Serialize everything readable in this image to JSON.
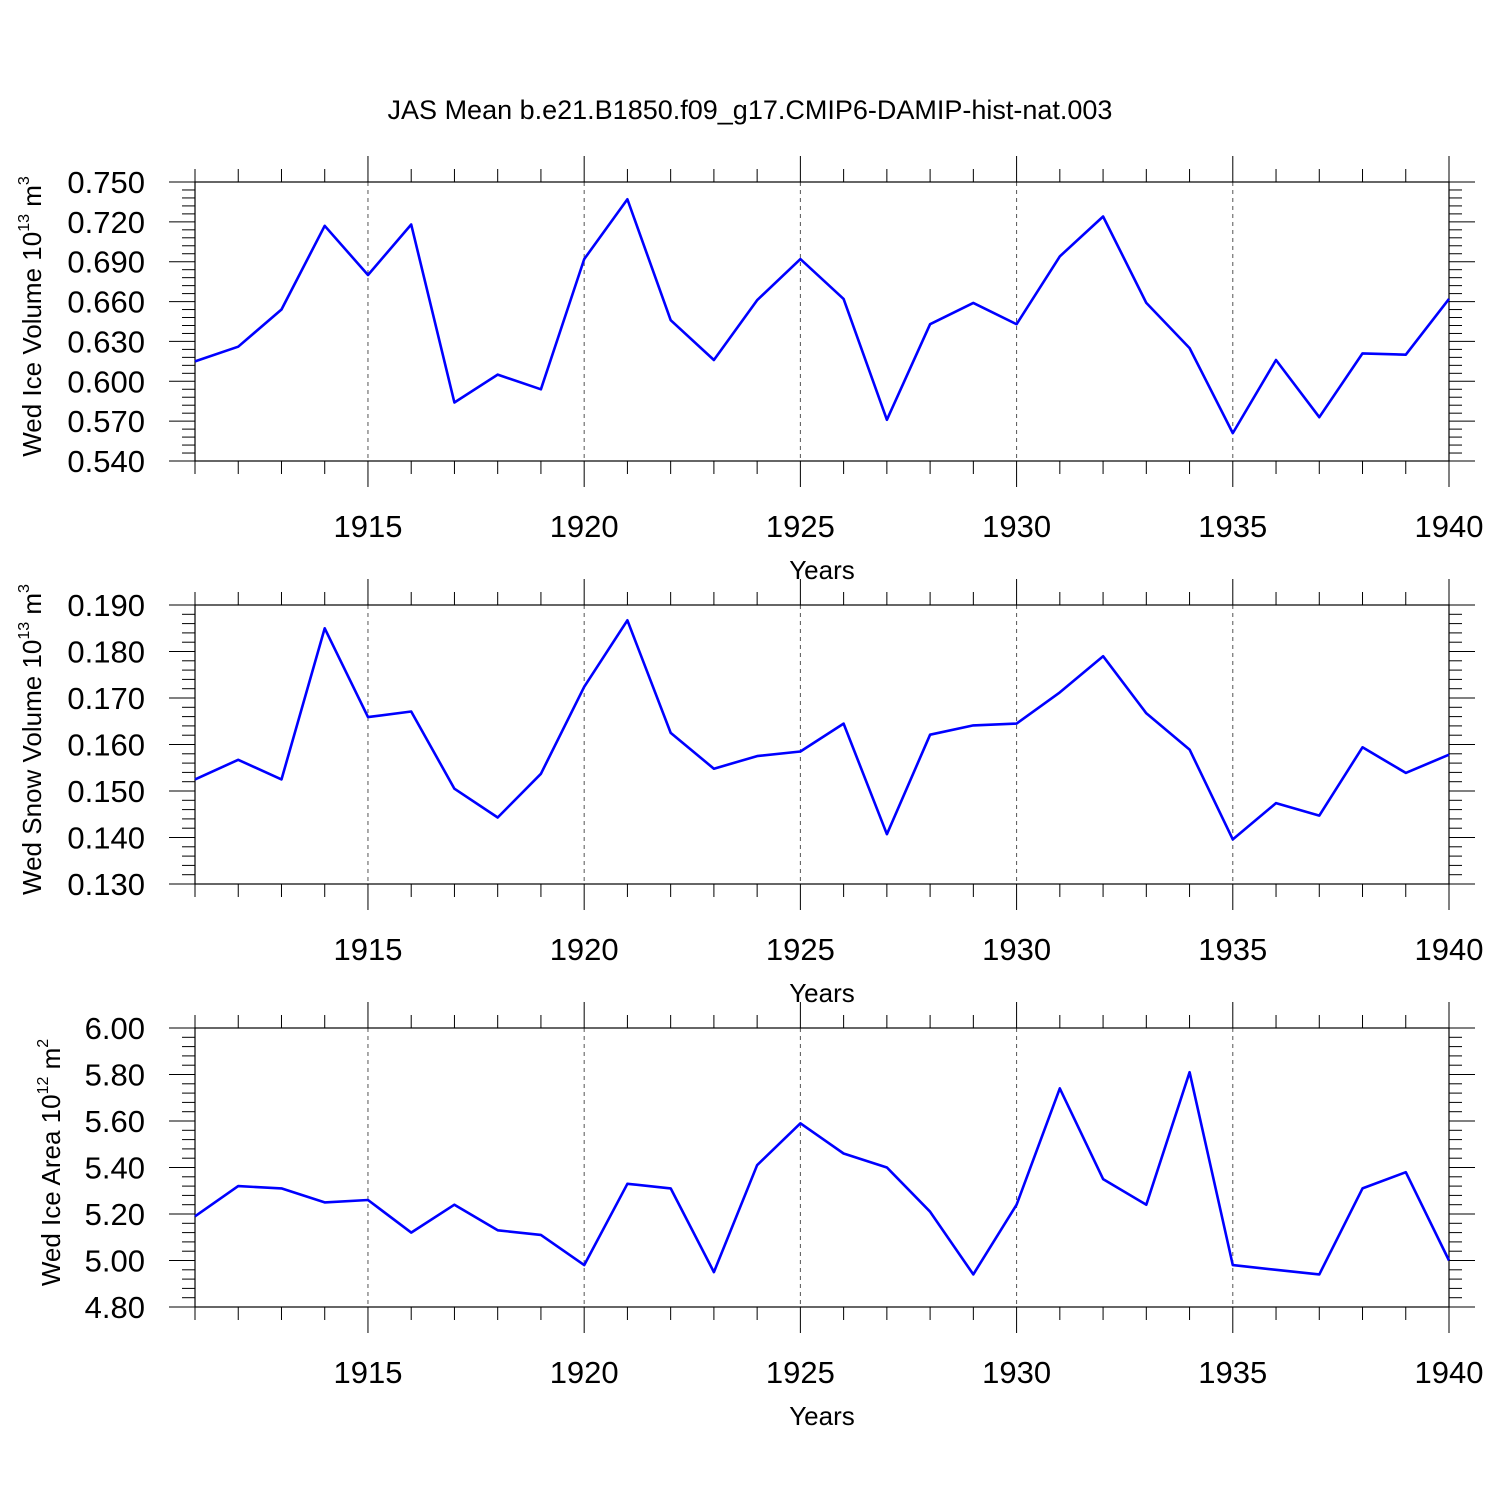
{
  "title": "JAS Mean b.e21.B1850.f09_g17.CMIP6-DAMIP-hist-nat.003",
  "chart_data": [
    {
      "type": "line",
      "ylabel": {
        "prefix": "Wed Ice Volume 10",
        "exp": "13",
        "unit": " m",
        "unit_exp": "3"
      },
      "xlabel": "Years",
      "xlim": [
        1911,
        1940
      ],
      "ylim": [
        0.54,
        0.75
      ],
      "yticks": [
        "0.540",
        "0.570",
        "0.600",
        "0.630",
        "0.660",
        "0.690",
        "0.720",
        "0.750"
      ],
      "xticks": [
        "1915",
        "1920",
        "1925",
        "1930",
        "1935",
        "1940"
      ],
      "line_color": "#0000ff",
      "grid": "vertical dashed at major x ticks",
      "x": [
        1911,
        1912,
        1913,
        1914,
        1915,
        1916,
        1917,
        1918,
        1919,
        1920,
        1921,
        1922,
        1923,
        1924,
        1925,
        1926,
        1927,
        1928,
        1929,
        1930,
        1931,
        1932,
        1933,
        1934,
        1935,
        1936,
        1937,
        1938,
        1939,
        1940
      ],
      "values": [
        0.615,
        0.626,
        0.654,
        0.717,
        0.68,
        0.718,
        0.584,
        0.605,
        0.594,
        0.692,
        0.737,
        0.646,
        0.616,
        0.661,
        0.692,
        0.662,
        0.571,
        0.643,
        0.659,
        0.643,
        0.694,
        0.724,
        0.659,
        0.625,
        0.561,
        0.616,
        0.573,
        0.621,
        0.62,
        0.662
      ]
    },
    {
      "type": "line",
      "ylabel": {
        "prefix": "Wed Snow Volume 10",
        "exp": "13",
        "unit": " m",
        "unit_exp": "3"
      },
      "xlabel": "Years",
      "xlim": [
        1911,
        1940
      ],
      "ylim": [
        0.13,
        0.19
      ],
      "yticks": [
        "0.130",
        "0.140",
        "0.150",
        "0.160",
        "0.170",
        "0.180",
        "0.190"
      ],
      "xticks": [
        "1915",
        "1920",
        "1925",
        "1930",
        "1935",
        "1940"
      ],
      "line_color": "#0000ff",
      "grid": "vertical dashed at major x ticks",
      "x": [
        1911,
        1912,
        1913,
        1914,
        1915,
        1916,
        1917,
        1918,
        1919,
        1920,
        1921,
        1922,
        1923,
        1924,
        1925,
        1926,
        1927,
        1928,
        1929,
        1930,
        1931,
        1932,
        1933,
        1934,
        1935,
        1936,
        1937,
        1938,
        1939,
        1940
      ],
      "values": [
        0.1525,
        0.1567,
        0.1525,
        0.185,
        0.1659,
        0.1671,
        0.1505,
        0.1443,
        0.1537,
        0.1724,
        0.1867,
        0.1625,
        0.1548,
        0.1575,
        0.1585,
        0.1645,
        0.1407,
        0.1621,
        0.1641,
        0.1645,
        0.1712,
        0.179,
        0.1667,
        0.1589,
        0.1396,
        0.1474,
        0.1447,
        0.1594,
        0.1539,
        0.1578
      ]
    },
    {
      "type": "line",
      "ylabel": {
        "prefix": "Wed Ice Area 10",
        "exp": "12",
        "unit": " m",
        "unit_exp": "2"
      },
      "xlabel": "Years",
      "xlim": [
        1911,
        1940
      ],
      "ylim": [
        4.8,
        6.0
      ],
      "yticks": [
        "4.80",
        "5.00",
        "5.20",
        "5.40",
        "5.60",
        "5.80",
        "6.00"
      ],
      "xticks": [
        "1915",
        "1920",
        "1925",
        "1930",
        "1935",
        "1940"
      ],
      "line_color": "#0000ff",
      "grid": "vertical dashed at major x ticks",
      "x": [
        1911,
        1912,
        1913,
        1914,
        1915,
        1916,
        1917,
        1918,
        1919,
        1920,
        1921,
        1922,
        1923,
        1924,
        1925,
        1926,
        1927,
        1928,
        1929,
        1930,
        1931,
        1932,
        1933,
        1934,
        1935,
        1936,
        1937,
        1938,
        1939,
        1940
      ],
      "values": [
        5.19,
        5.32,
        5.31,
        5.25,
        5.26,
        5.12,
        5.24,
        5.13,
        5.11,
        4.98,
        5.33,
        5.31,
        4.95,
        5.41,
        5.59,
        5.46,
        5.4,
        5.21,
        4.94,
        5.24,
        5.74,
        5.35,
        5.24,
        5.81,
        4.98,
        4.96,
        4.94,
        5.31,
        5.38,
        5.0
      ]
    }
  ]
}
